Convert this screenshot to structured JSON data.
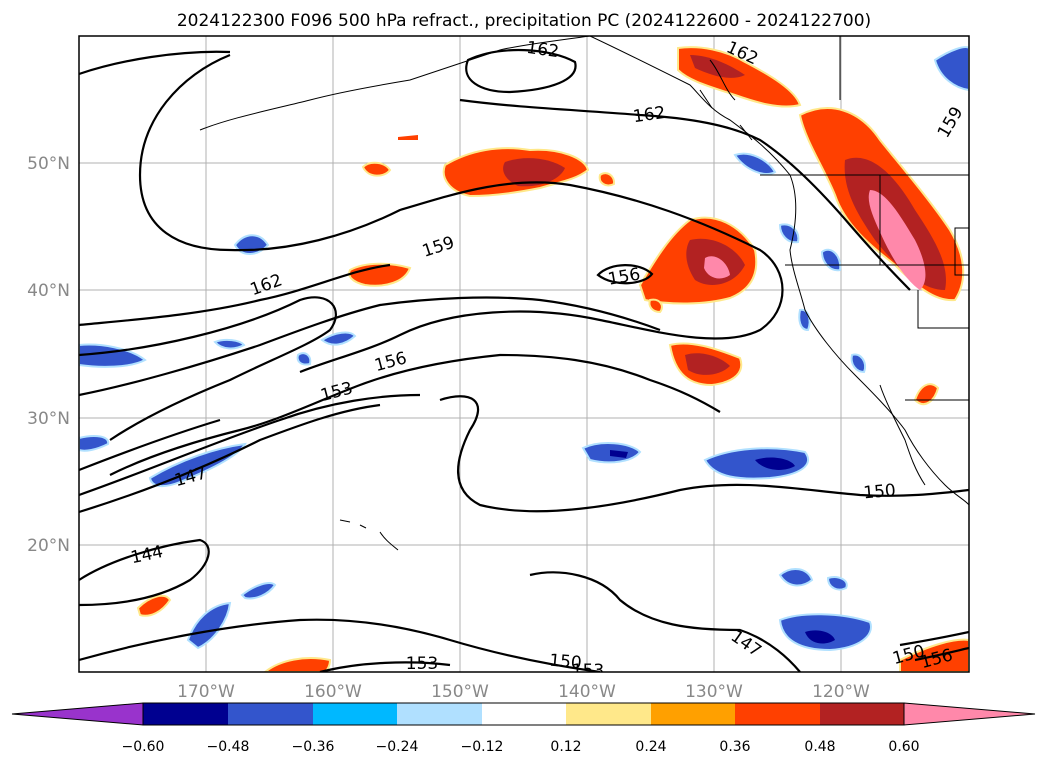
{
  "title": "2024122300 F096 500 hPa refract., precipitation PC (2024122600 - 2024122700)",
  "lon_labels": [
    "170°W",
    "160°W",
    "150°W",
    "140°W",
    "130°W",
    "120°W"
  ],
  "lat_labels": [
    "50°N",
    "40°N",
    "30°N",
    "20°N"
  ],
  "colorbar": {
    "ticks": [
      "−0.60",
      "−0.48",
      "−0.36",
      "−0.24",
      "−0.12",
      "0.12",
      "0.24",
      "0.36",
      "0.48",
      "0.60"
    ],
    "colors": {
      "under": "#9933cc",
      "bins": [
        "#000090",
        "#3355cc",
        "#00b8ff",
        "#b0e0ff",
        "#ffffff",
        "#ffe88a",
        "#ffa000",
        "#ff4000",
        "#b22222"
      ],
      "over": "#ff88aa"
    }
  },
  "contour_labels": [
    "162",
    "162",
    "162",
    "159",
    "159",
    "162",
    "156",
    "156",
    "153",
    "147",
    "144",
    "150",
    "147",
    "153",
    "150",
    "153",
    "150",
    "156"
  ],
  "chart_data": {
    "type": "heatmap",
    "title": "2024122300 F096 500 hPa refract., precipitation PC (2024122600 - 2024122700)",
    "x_ticks": [
      "170°W",
      "160°W",
      "150°W",
      "140°W",
      "130°W",
      "120°W"
    ],
    "y_ticks": [
      "50°N",
      "40°N",
      "30°N",
      "20°N"
    ],
    "lon_range": [
      -180,
      -110
    ],
    "lat_range": [
      10,
      60
    ],
    "contour_levels": [
      144,
      147,
      150,
      153,
      156,
      159,
      162
    ],
    "colorbar_levels": [
      -0.6,
      -0.48,
      -0.36,
      -0.24,
      -0.12,
      0.12,
      0.24,
      0.36,
      0.48,
      0.6
    ],
    "grid": true
  }
}
